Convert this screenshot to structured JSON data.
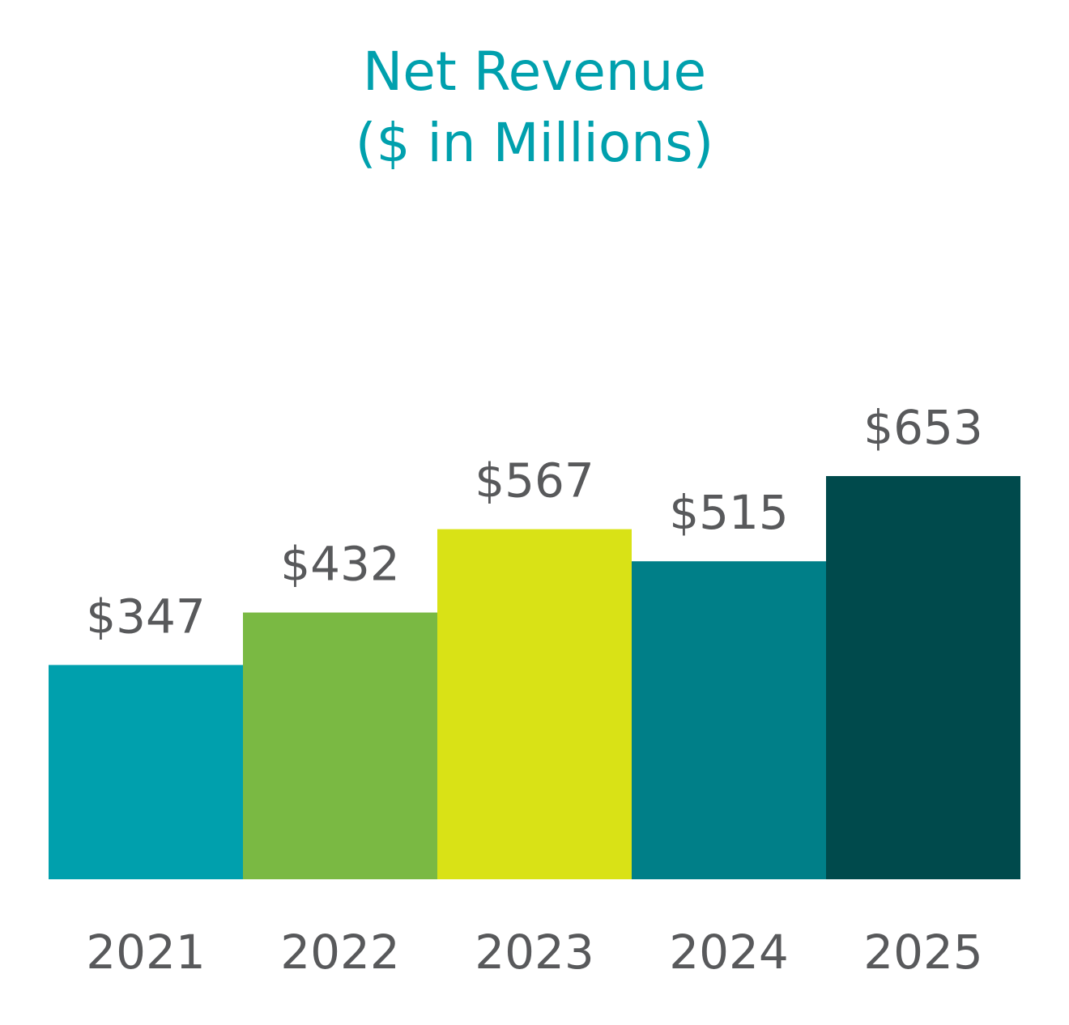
{
  "chart_data": {
    "type": "bar",
    "title": "Net Revenue",
    "subtitle": "($ in Millions)",
    "xlabel": "",
    "ylabel": "",
    "grid": false,
    "legend": "none",
    "categories": [
      "2021",
      "2022",
      "2023",
      "2024",
      "2025"
    ],
    "values": [
      347,
      432,
      567,
      515,
      653
    ],
    "labels": [
      "$347",
      "$432",
      "$567",
      "$515",
      "$653"
    ],
    "colors": [
      "#00a0ad",
      "#7ab943",
      "#d9e216",
      "#007f88",
      "#004a4c"
    ],
    "ylim": [
      0,
      653
    ]
  }
}
